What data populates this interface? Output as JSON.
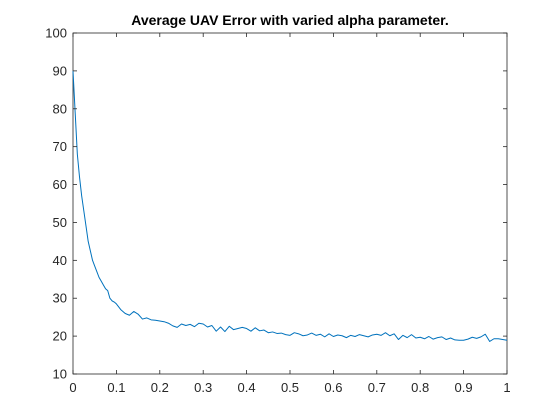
{
  "chart_data": {
    "type": "line",
    "title": "Average UAV Error with varied alpha parameter.",
    "xlabel": "",
    "ylabel": "",
    "xlim": [
      0,
      1
    ],
    "ylim": [
      10,
      100
    ],
    "x_ticks": [
      "0",
      "0.1",
      "0.2",
      "0.3",
      "0.4",
      "0.5",
      "0.6",
      "0.7",
      "0.8",
      "0.9",
      "1"
    ],
    "y_ticks": [
      "10",
      "20",
      "30",
      "40",
      "50",
      "60",
      "70",
      "80",
      "90",
      "100"
    ],
    "grid": false,
    "legend": "none",
    "line_color": "#0072BD",
    "series": [
      {
        "x": [
          0,
          0.005,
          0.01,
          0.015,
          0.02,
          0.025,
          0.03,
          0.035,
          0.04,
          0.045,
          0.05,
          0.055,
          0.06,
          0.065,
          0.07,
          0.075,
          0.08,
          0.085,
          0.09,
          0.095,
          0.1,
          0.11,
          0.12,
          0.13,
          0.14,
          0.15,
          0.16,
          0.17,
          0.18,
          0.19,
          0.2,
          0.21,
          0.22,
          0.23,
          0.24,
          0.25,
          0.26,
          0.27,
          0.28,
          0.29,
          0.3,
          0.31,
          0.32,
          0.33,
          0.34,
          0.35,
          0.36,
          0.37,
          0.38,
          0.39,
          0.4,
          0.41,
          0.42,
          0.43,
          0.44,
          0.45,
          0.46,
          0.47,
          0.48,
          0.49,
          0.5,
          0.51,
          0.52,
          0.53,
          0.54,
          0.55,
          0.56,
          0.57,
          0.58,
          0.59,
          0.6,
          0.61,
          0.62,
          0.63,
          0.64,
          0.65,
          0.66,
          0.67,
          0.68,
          0.69,
          0.7,
          0.71,
          0.72,
          0.73,
          0.74,
          0.75,
          0.76,
          0.77,
          0.78,
          0.79,
          0.8,
          0.81,
          0.82,
          0.83,
          0.84,
          0.85,
          0.86,
          0.87,
          0.88,
          0.89,
          0.9,
          0.91,
          0.92,
          0.93,
          0.94,
          0.95,
          0.96,
          0.97,
          0.98,
          0.99,
          1.0
        ],
        "y": [
          90,
          79,
          68,
          62,
          57,
          53,
          49,
          45,
          42.5,
          40,
          38.5,
          37,
          35.5,
          34.5,
          33.5,
          32.5,
          32,
          30,
          29.3,
          29,
          28.5,
          27,
          26,
          25.5,
          26.5,
          25.8,
          24.5,
          24.8,
          24.3,
          24.2,
          24,
          23.8,
          23.4,
          22.7,
          22.3,
          23.2,
          22.8,
          23.1,
          22.5,
          23.4,
          23.2,
          22.4,
          22.8,
          21.3,
          22.4,
          21.2,
          22.6,
          21.7,
          22,
          22.3,
          22,
          21.3,
          22.2,
          21.4,
          21.6,
          20.9,
          21.1,
          20.7,
          20.8,
          20.4,
          20.2,
          20.9,
          20.6,
          20.1,
          20.3,
          20.8,
          20.2,
          20.5,
          19.8,
          20.6,
          19.9,
          20.3,
          20.1,
          19.6,
          20.2,
          19.9,
          20.4,
          20.1,
          19.8,
          20.3,
          20.5,
          20.2,
          20.9,
          20.1,
          20.6,
          19.1,
          20.2,
          19.6,
          20.4,
          19.5,
          19.7,
          19.3,
          19.9,
          19.2,
          19.6,
          19.8,
          19.1,
          19.5,
          19,
          18.9,
          18.9,
          19.2,
          19.7,
          19.4,
          19.8,
          20.5,
          18.6,
          19.3,
          19.3,
          19.1,
          18.9
        ]
      }
    ]
  }
}
